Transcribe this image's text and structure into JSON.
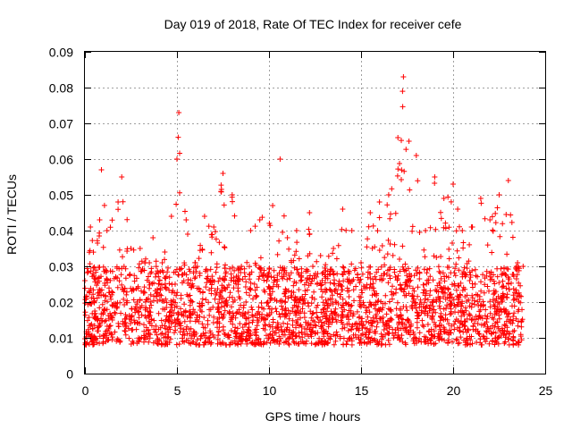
{
  "chart_data": {
    "type": "scatter",
    "title": "Day 019 of 2018, Rate Of TEC Index for receiver cefe",
    "xlabel": "GPS time / hours",
    "ylabel": "ROTI / TECUs",
    "xlim": [
      0,
      25
    ],
    "ylim": [
      0,
      0.09
    ],
    "x_ticks": [
      0,
      5,
      10,
      15,
      20,
      25
    ],
    "x_tick_labels": [
      "0",
      "5",
      "10",
      "15",
      "20",
      "25"
    ],
    "y_ticks": [
      0,
      0.01,
      0.02,
      0.03,
      0.04,
      0.05,
      0.06,
      0.07,
      0.08,
      0.09
    ],
    "y_tick_labels": [
      "0",
      "0.01",
      "0.02",
      "0.03",
      "0.04",
      "0.05",
      "0.06",
      "0.07",
      "0.08",
      "0.09"
    ],
    "grid": true,
    "marker": "+",
    "marker_color": "#ff0000",
    "series": [
      {
        "name": "ROTI",
        "density_profile": {
          "x_range": [
            0,
            23.8
          ],
          "typical_band": [
            0.008,
            0.03
          ],
          "envelope": [
            {
              "x": 0.0,
              "y": 0.026
            },
            {
              "x": 0.3,
              "y": 0.041
            },
            {
              "x": 0.8,
              "y": 0.043
            },
            {
              "x": 0.9,
              "y": 0.057
            },
            {
              "x": 1.2,
              "y": 0.04
            },
            {
              "x": 1.8,
              "y": 0.048
            },
            {
              "x": 2.0,
              "y": 0.055
            },
            {
              "x": 2.5,
              "y": 0.035
            },
            {
              "x": 3.0,
              "y": 0.035
            },
            {
              "x": 3.5,
              "y": 0.031
            },
            {
              "x": 3.7,
              "y": 0.038
            },
            {
              "x": 4.2,
              "y": 0.031
            },
            {
              "x": 4.7,
              "y": 0.044
            },
            {
              "x": 5.0,
              "y": 0.06
            },
            {
              "x": 5.1,
              "y": 0.073
            },
            {
              "x": 5.5,
              "y": 0.043
            },
            {
              "x": 6.0,
              "y": 0.031
            },
            {
              "x": 6.5,
              "y": 0.044
            },
            {
              "x": 7.0,
              "y": 0.041
            },
            {
              "x": 7.5,
              "y": 0.056
            },
            {
              "x": 8.0,
              "y": 0.05
            },
            {
              "x": 8.5,
              "y": 0.03
            },
            {
              "x": 9.0,
              "y": 0.04
            },
            {
              "x": 9.5,
              "y": 0.043
            },
            {
              "x": 10.2,
              "y": 0.047
            },
            {
              "x": 10.6,
              "y": 0.06
            },
            {
              "x": 11.0,
              "y": 0.038
            },
            {
              "x": 11.5,
              "y": 0.04
            },
            {
              "x": 12.2,
              "y": 0.045
            },
            {
              "x": 12.8,
              "y": 0.033
            },
            {
              "x": 13.5,
              "y": 0.035
            },
            {
              "x": 14.0,
              "y": 0.046
            },
            {
              "x": 14.5,
              "y": 0.04
            },
            {
              "x": 15.0,
              "y": 0.031
            },
            {
              "x": 15.5,
              "y": 0.045
            },
            {
              "x": 16.0,
              "y": 0.048
            },
            {
              "x": 16.5,
              "y": 0.05
            },
            {
              "x": 17.0,
              "y": 0.066
            },
            {
              "x": 17.3,
              "y": 0.083
            },
            {
              "x": 17.6,
              "y": 0.065
            },
            {
              "x": 18.0,
              "y": 0.061
            },
            {
              "x": 18.5,
              "y": 0.04
            },
            {
              "x": 19.0,
              "y": 0.055
            },
            {
              "x": 19.5,
              "y": 0.049
            },
            {
              "x": 20.0,
              "y": 0.053
            },
            {
              "x": 20.5,
              "y": 0.04
            },
            {
              "x": 21.0,
              "y": 0.041
            },
            {
              "x": 21.5,
              "y": 0.049
            },
            {
              "x": 22.0,
              "y": 0.043
            },
            {
              "x": 22.5,
              "y": 0.05
            },
            {
              "x": 23.0,
              "y": 0.054
            },
            {
              "x": 23.5,
              "y": 0.031
            },
            {
              "x": 23.8,
              "y": 0.03
            }
          ]
        }
      }
    ]
  }
}
